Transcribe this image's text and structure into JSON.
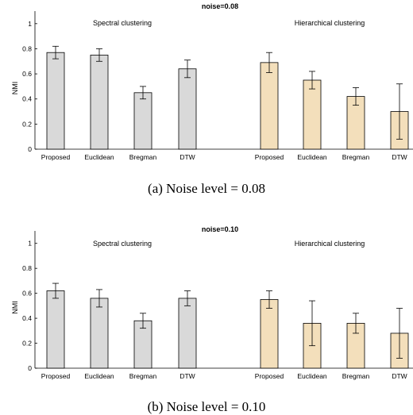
{
  "chart_data": [
    {
      "type": "bar",
      "title": "noise=0.08",
      "ylabel": "NMI",
      "xlabel": "",
      "ylim": [
        0,
        1.1
      ],
      "yticks": [
        "0",
        "0.2",
        "0.4",
        "0.6",
        "0.8",
        "1"
      ],
      "caption": "(a) Noise level = 0.08",
      "groups": [
        {
          "name": "Spectral clustering",
          "color": "#d9d9d9",
          "categories": [
            "Proposed",
            "Euclidean",
            "Bregman",
            "DTW"
          ],
          "values": [
            0.77,
            0.75,
            0.45,
            0.64
          ],
          "errors": [
            0.05,
            0.05,
            0.05,
            0.07
          ]
        },
        {
          "name": "Hierarchical clustering",
          "color": "#f3dfbb",
          "categories": [
            "Proposed",
            "Euclidean",
            "Bregman",
            "DTW"
          ],
          "values": [
            0.69,
            0.55,
            0.42,
            0.3
          ],
          "errors": [
            0.08,
            0.07,
            0.07,
            0.22
          ]
        }
      ]
    },
    {
      "type": "bar",
      "title": "noise=0.10",
      "ylabel": "NMI",
      "xlabel": "",
      "ylim": [
        0,
        1.1
      ],
      "yticks": [
        "0",
        "0.2",
        "0.4",
        "0.6",
        "0.8",
        "1"
      ],
      "caption": "(b) Noise level = 0.10",
      "groups": [
        {
          "name": "Spectral clustering",
          "color": "#d9d9d9",
          "categories": [
            "Proposed",
            "Euclidean",
            "Bregman",
            "DTW"
          ],
          "values": [
            0.62,
            0.56,
            0.38,
            0.56
          ],
          "errors": [
            0.06,
            0.07,
            0.06,
            0.06
          ]
        },
        {
          "name": "Hierarchical clustering",
          "color": "#f3dfbb",
          "categories": [
            "Proposed",
            "Euclidean",
            "Bregman",
            "DTW"
          ],
          "values": [
            0.55,
            0.36,
            0.36,
            0.28
          ],
          "errors": [
            0.07,
            0.18,
            0.08,
            0.2
          ]
        }
      ]
    }
  ]
}
